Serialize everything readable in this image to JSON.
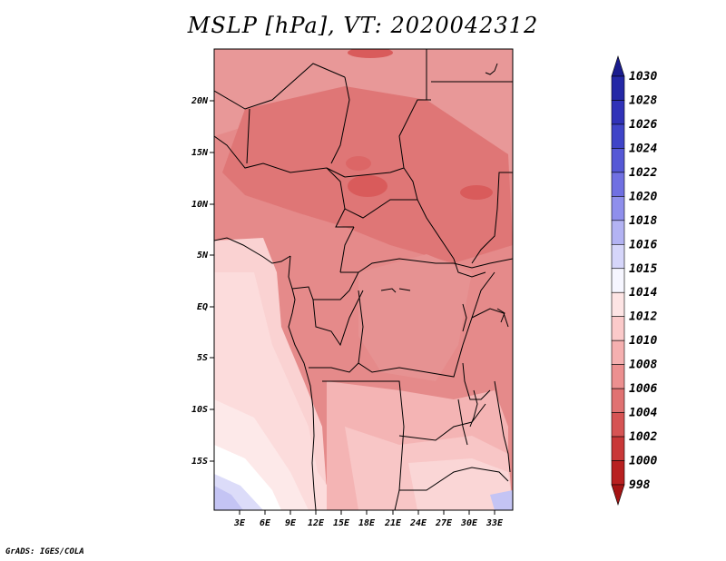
{
  "title": "MSLP [hPa], VT: 2020042312",
  "footer": "GrADS: IGES/COLA",
  "map": {
    "lat_labels": [
      "20N",
      "15N",
      "10N",
      "5N",
      "EQ",
      "5S",
      "10S",
      "15S"
    ],
    "lon_labels": [
      "3E",
      "6E",
      "9E",
      "12E",
      "15E",
      "18E",
      "21E",
      "24E",
      "27E",
      "30E",
      "33E"
    ]
  },
  "colorbar": {
    "levels": [
      "1030",
      "1028",
      "1026",
      "1024",
      "1022",
      "1020",
      "1018",
      "1016",
      "1015",
      "1014",
      "1012",
      "1010",
      "1008",
      "1006",
      "1004",
      "1002",
      "1000",
      "998"
    ],
    "colors": [
      "#1a1c8e",
      "#2428a6",
      "#3032b8",
      "#3f44c8",
      "#5558d6",
      "#7070e2",
      "#8f8fec",
      "#b3b3f3",
      "#d6d6fa",
      "#f6f6ff",
      "#fde4e4",
      "#fbcaca",
      "#f5b0b0",
      "#ec9090",
      "#e07272",
      "#d65454",
      "#c93838",
      "#b82020",
      "#a51414"
    ]
  }
}
